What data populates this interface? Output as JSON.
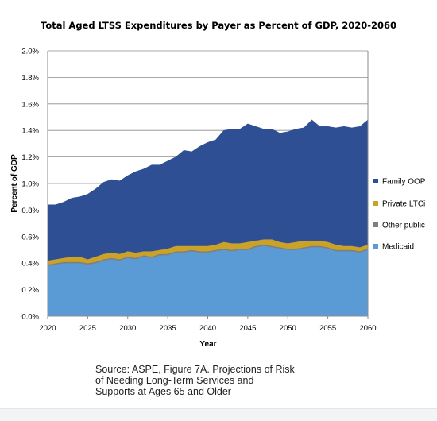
{
  "chart_data": {
    "type": "area",
    "stacked": true,
    "title": "Total Aged LTSS Expenditures by Payer as Percent of GDP, 2020-2060",
    "xlabel": "Year",
    "ylabel": "Percent of GDP",
    "xlim": [
      2020,
      2060
    ],
    "ylim": [
      0,
      0.02
    ],
    "x_ticks": [
      "2020",
      "2025",
      "2030",
      "2035",
      "2040",
      "2045",
      "2050",
      "2055",
      "2060"
    ],
    "y_ticks": [
      "0.0%",
      "0.2%",
      "0.4%",
      "0.6%",
      "0.8%",
      "1.0%",
      "1.2%",
      "1.4%",
      "1.6%",
      "1.8%",
      "2.0%"
    ],
    "grid": true,
    "legend_position": "right",
    "x": [
      2020,
      2021,
      2022,
      2023,
      2024,
      2025,
      2026,
      2027,
      2028,
      2029,
      2030,
      2031,
      2032,
      2033,
      2034,
      2035,
      2036,
      2037,
      2038,
      2039,
      2040,
      2041,
      2042,
      2043,
      2044,
      2045,
      2046,
      2047,
      2048,
      2049,
      2050,
      2051,
      2052,
      2053,
      2054,
      2055,
      2056,
      2057,
      2058,
      2059,
      2060
    ],
    "series": [
      {
        "name": "Medicaid",
        "color": "#5b9bd5",
        "values": [
          0.0038,
          0.0039,
          0.004,
          0.004,
          0.004,
          0.0039,
          0.004,
          0.0042,
          0.0043,
          0.0042,
          0.0044,
          0.0043,
          0.0045,
          0.0044,
          0.0046,
          0.0046,
          0.0048,
          0.0048,
          0.0049,
          0.0048,
          0.0048,
          0.0049,
          0.005,
          0.0049,
          0.005,
          0.005,
          0.0052,
          0.0053,
          0.0052,
          0.0051,
          0.005,
          0.005,
          0.0051,
          0.0052,
          0.0052,
          0.0051,
          0.0049,
          0.0049,
          0.0049,
          0.0048,
          0.005
        ]
      },
      {
        "name": "Other public",
        "color": "#7f7f7f",
        "values": [
          0.0001,
          0.0001,
          0.0001,
          0.0001,
          0.0001,
          0.0001,
          0.0001,
          0.0001,
          0.0001,
          0.0001,
          0.0001,
          0.0001,
          0.0001,
          0.0001,
          0.0001,
          0.0001,
          0.0001,
          0.0001,
          0.0001,
          0.0001,
          0.0001,
          0.0001,
          0.0001,
          0.0001,
          0.0001,
          0.0001,
          0.0001,
          0.0001,
          0.0001,
          0.0001,
          0.0001,
          0.0001,
          0.0001,
          0.0001,
          0.0001,
          0.0001,
          0.0001,
          0.0001,
          0.0001,
          0.0001,
          0.0001
        ]
      },
      {
        "name": "Private LTCi",
        "color": "#c9a227",
        "values": [
          0.0003,
          0.0003,
          0.0003,
          0.0004,
          0.0004,
          0.0003,
          0.0004,
          0.0004,
          0.0004,
          0.0004,
          0.0004,
          0.0004,
          0.0003,
          0.0004,
          0.0003,
          0.0004,
          0.0004,
          0.0004,
          0.0003,
          0.0004,
          0.0004,
          0.0004,
          0.0005,
          0.0005,
          0.0004,
          0.0005,
          0.0004,
          0.0004,
          0.0005,
          0.0004,
          0.0004,
          0.0005,
          0.0005,
          0.0004,
          0.0004,
          0.0004,
          0.0004,
          0.0003,
          0.0003,
          0.0003,
          0.0003
        ]
      },
      {
        "name": "Family OOP",
        "color": "#2e4f94",
        "values": [
          0.0042,
          0.0041,
          0.0042,
          0.0044,
          0.0045,
          0.0049,
          0.0051,
          0.0054,
          0.0055,
          0.0055,
          0.0057,
          0.0061,
          0.0062,
          0.0065,
          0.0064,
          0.0066,
          0.0067,
          0.0072,
          0.0071,
          0.0075,
          0.0078,
          0.0079,
          0.0084,
          0.0086,
          0.0086,
          0.0089,
          0.0086,
          0.0083,
          0.0083,
          0.0082,
          0.0084,
          0.0085,
          0.0085,
          0.0091,
          0.0086,
          0.0087,
          0.0088,
          0.009,
          0.0089,
          0.0091,
          0.0094
        ]
      }
    ]
  },
  "legend_order": [
    "Family OOP",
    "Private LTCi",
    "Other public",
    "Medicaid"
  ],
  "caption": {
    "line1": "Source: ASPE, Figure 7A. Projections of Risk",
    "line2": "of Needing Long-Term Services and",
    "line3": "Supports at Ages 65 and Older"
  }
}
